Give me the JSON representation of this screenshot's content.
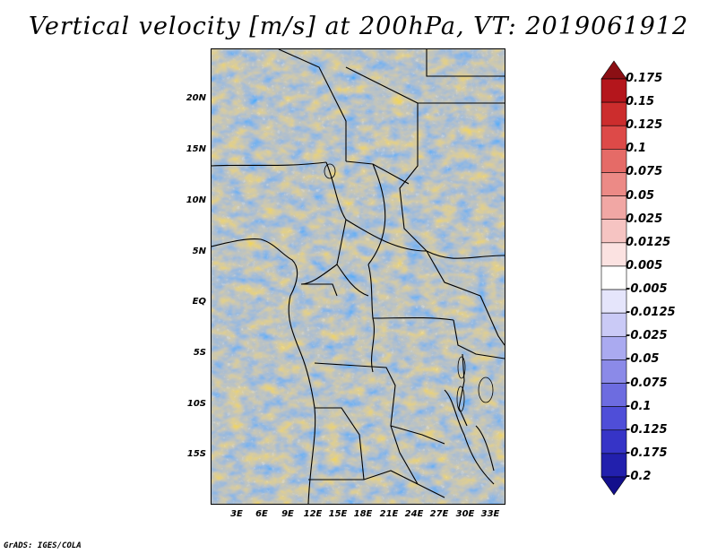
{
  "title": "Vertical velocity [m/s] at 200hPa, VT: 2019061912",
  "credit": "GrADS: IGES/COLA",
  "y_axis_labels": [
    "20N",
    "15N",
    "10N",
    "5N",
    "EQ",
    "5S",
    "10S",
    "15S"
  ],
  "x_axis_labels": [
    "3E",
    "6E",
    "9E",
    "12E",
    "15E",
    "18E",
    "21E",
    "24E",
    "27E",
    "30E",
    "33E"
  ],
  "colorbar": {
    "labels": [
      "0.175",
      "0.15",
      "0.125",
      "0.1",
      "0.075",
      "0.05",
      "0.025",
      "0.0125",
      "0.005",
      "-0.005",
      "-0.0125",
      "-0.025",
      "-0.05",
      "-0.075",
      "-0.1",
      "-0.125",
      "-0.175",
      "-0.2"
    ],
    "colors": [
      "#8b0f14",
      "#b4161c",
      "#cc2d2d",
      "#dd4a48",
      "#e56b67",
      "#ec8a86",
      "#f1a7a4",
      "#f6c4c2",
      "#fbe2e1",
      "#ffffff",
      "#e5e5fb",
      "#cacaf6",
      "#aaaaf0",
      "#8b8ae8",
      "#6d6ce0",
      "#4f4ed8",
      "#3634c7",
      "#2220ad",
      "#130f8c"
    ]
  }
}
